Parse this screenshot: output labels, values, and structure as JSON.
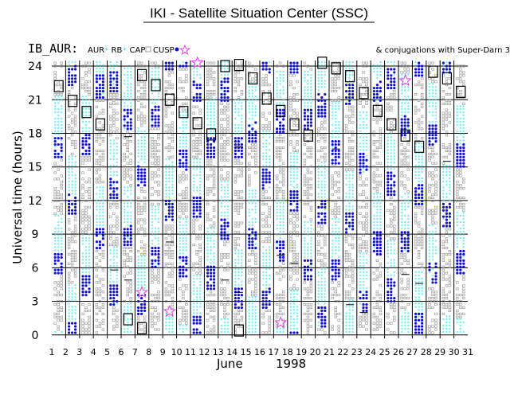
{
  "chart_data": {
    "type": "scatter",
    "title": "IKI - Satellite Situation Center (SSC)",
    "satellite": "IB_AUR:",
    "conjugation_note": "& conjugations with Super-Darn 3",
    "legend": [
      {
        "label": "AUR",
        "marker": "star",
        "color": "#33e0e0"
      },
      {
        "label": "RB",
        "marker": "star",
        "color": "#33e0e0"
      },
      {
        "label": "CAP",
        "marker": "square",
        "color": "#888888"
      },
      {
        "label": "CUSP",
        "marker": "dot",
        "color": "#1010d0"
      },
      {
        "label": "",
        "marker": "open-star",
        "color": "#e040e0"
      }
    ],
    "ylabel": "Universal time (hours)",
    "xlabel_month": "June",
    "xlabel_year": "1998",
    "ylim": [
      0,
      24
    ],
    "yticks": [
      0,
      3,
      6,
      9,
      12,
      15,
      18,
      21,
      24
    ],
    "xlim": [
      1,
      31
    ],
    "xticks": [
      1,
      2,
      3,
      4,
      5,
      6,
      7,
      8,
      9,
      10,
      11,
      12,
      13,
      14,
      15,
      16,
      17,
      18,
      19,
      20,
      21,
      22,
      23,
      24,
      25,
      26,
      27,
      28,
      29,
      30,
      31
    ],
    "grid": true,
    "conjugation_boxes": [
      {
        "day": 2,
        "hour": 22.2
      },
      {
        "day": 3,
        "hour": 20.9
      },
      {
        "day": 4,
        "hour": 19.9
      },
      {
        "day": 5,
        "hour": 18.8
      },
      {
        "day": 7,
        "hour": 1.4
      },
      {
        "day": 8,
        "hour": 23.2
      },
      {
        "day": 8,
        "hour": 0.6
      },
      {
        "day": 9,
        "hour": 22.3
      },
      {
        "day": 10,
        "hour": 21.0
      },
      {
        "day": 11,
        "hour": 19.9
      },
      {
        "day": 12,
        "hour": 18.9
      },
      {
        "day": 13,
        "hour": 17.9
      },
      {
        "day": 14,
        "hour": 24.0
      },
      {
        "day": 15,
        "hour": 24.1
      },
      {
        "day": 15,
        "hour": 0.4
      },
      {
        "day": 16,
        "hour": 22.9
      },
      {
        "day": 17,
        "hour": 21.1
      },
      {
        "day": 18,
        "hour": 20.0
      },
      {
        "day": 19,
        "hour": 18.8
      },
      {
        "day": 20,
        "hour": 17.8
      },
      {
        "day": 21,
        "hour": 24.3
      },
      {
        "day": 22,
        "hour": 23.8
      },
      {
        "day": 23,
        "hour": 23.1
      },
      {
        "day": 24,
        "hour": 21.6
      },
      {
        "day": 25,
        "hour": 20.0
      },
      {
        "day": 26,
        "hour": 18.8
      },
      {
        "day": 27,
        "hour": 17.8
      },
      {
        "day": 28,
        "hour": 16.8
      },
      {
        "day": 29,
        "hour": 23.5
      },
      {
        "day": 30,
        "hour": 22.9
      },
      {
        "day": 31,
        "hour": 21.7
      }
    ],
    "conjugation_stars": [
      {
        "day": 7,
        "hour": 3.8
      },
      {
        "day": 9,
        "hour": 2.1
      },
      {
        "day": 11,
        "hour": 24.3
      },
      {
        "day": 17,
        "hour": 1.1
      },
      {
        "day": 26,
        "hour": 22.7
      }
    ],
    "ut_dashes": [
      {
        "day": 6,
        "hour": 17.7
      },
      {
        "day": 6,
        "hour": 4.9
      },
      {
        "day": 5,
        "hour": 5.8
      },
      {
        "day": 9,
        "hour": 8.3
      },
      {
        "day": 13,
        "hour": 4.9
      },
      {
        "day": 14,
        "hour": 16.8
      },
      {
        "day": 14,
        "hour": 3.8
      },
      {
        "day": 17,
        "hour": 7.1
      },
      {
        "day": 18,
        "hour": 6.4
      },
      {
        "day": 21,
        "hour": 16.6
      },
      {
        "day": 22,
        "hour": 2.7
      },
      {
        "day": 23,
        "hour": 2.0
      },
      {
        "day": 26,
        "hour": 5.4
      },
      {
        "day": 27,
        "hour": 4.6
      },
      {
        "day": 29,
        "hour": 15.5
      }
    ]
  }
}
